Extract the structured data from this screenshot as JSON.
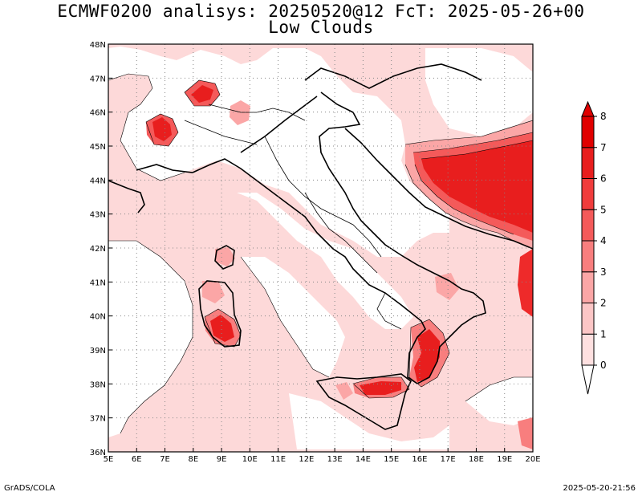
{
  "title": {
    "line1": "ECMWF0200 analisys: 20250520@12 FcT: 2025-05-26+00",
    "line2": "Low Clouds"
  },
  "map": {
    "lon_range": [
      5,
      20
    ],
    "lat_range": [
      36,
      48
    ],
    "lon_ticks": [
      "5E",
      "6E",
      "7E",
      "8E",
      "9E",
      "10E",
      "11E",
      "12E",
      "13E",
      "14E",
      "15E",
      "16E",
      "17E",
      "18E",
      "19E",
      "20E"
    ],
    "lat_ticks": [
      "36N",
      "37N",
      "38N",
      "39N",
      "40N",
      "41N",
      "42N",
      "43N",
      "44N",
      "45N",
      "46N",
      "47N",
      "48N"
    ],
    "grid": "dotted",
    "region": "Italy"
  },
  "colorbar": {
    "levels": [
      "0",
      "1",
      "2",
      "3",
      "4",
      "5",
      "6",
      "7",
      "8"
    ],
    "colors": [
      "#ffffff",
      "#fee0e0",
      "#fcc6c6",
      "#fba6a6",
      "#f87e7e",
      "#f45a5a",
      "#f03c3c",
      "#e81e1e",
      "#e00000"
    ]
  },
  "footer": {
    "left": "GrADS/COLA",
    "right": "2025-05-20-21:56"
  }
}
